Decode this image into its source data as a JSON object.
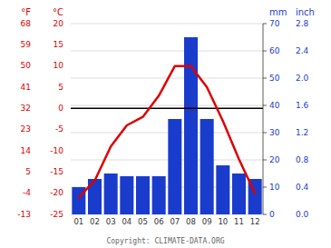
{
  "chart_data": {
    "type": "bar",
    "categories": [
      "01",
      "02",
      "03",
      "04",
      "05",
      "06",
      "07",
      "08",
      "09",
      "10",
      "11",
      "12"
    ],
    "series": [
      {
        "type": "bar",
        "color": "#1a3ccc",
        "values": [
          10,
          13,
          15,
          14,
          14,
          14,
          35,
          65,
          35,
          18,
          15,
          13
        ]
      },
      {
        "type": "line",
        "axis": "y2",
        "color": "#dd0000",
        "values": [
          -21,
          -17,
          -9,
          -4,
          -2,
          3,
          10,
          10,
          5,
          -3,
          -12,
          -20
        ]
      }
    ],
    "ylabel": "mm",
    "ylim": [
      0,
      70
    ],
    "yticks": [
      0,
      10,
      20,
      30,
      40,
      50,
      60,
      70
    ],
    "y_alt_label": "inch",
    "y_alt_ticks": [
      {
        "value": 0,
        "label": "0.0"
      },
      {
        "value": 10,
        "label": "0.4"
      },
      {
        "value": 20,
        "label": "0.8"
      },
      {
        "value": 30,
        "label": "1.2"
      },
      {
        "value": 40,
        "label": "1.6"
      },
      {
        "value": 50,
        "label": "2.0"
      },
      {
        "value": 60,
        "label": "2.4"
      },
      {
        "value": 70,
        "label": "2.8"
      }
    ],
    "y2label": "°C",
    "y2lim": [
      -25,
      20
    ],
    "y2ticks": [
      -25,
      -20,
      -15,
      -10,
      -5,
      0,
      5,
      10,
      15,
      20
    ],
    "y2_alt_label": "°F",
    "y2_alt_ticks": [
      {
        "value": -25,
        "label": "-13"
      },
      {
        "value": -20,
        "label": "-4"
      },
      {
        "value": -15,
        "label": "5"
      },
      {
        "value": -10,
        "label": "14"
      },
      {
        "value": -5,
        "label": "23"
      },
      {
        "value": 0,
        "label": "32"
      },
      {
        "value": 5,
        "label": "41"
      },
      {
        "value": 10,
        "label": "50"
      },
      {
        "value": 15,
        "label": "59"
      },
      {
        "value": 20,
        "label": "68"
      }
    ],
    "hlines": [
      {
        "axis": "y2",
        "value": 0,
        "color": "#000000"
      }
    ],
    "grid": true,
    "annotations": [
      "Copyright: CLIMATE-DATA.ORG"
    ]
  }
}
